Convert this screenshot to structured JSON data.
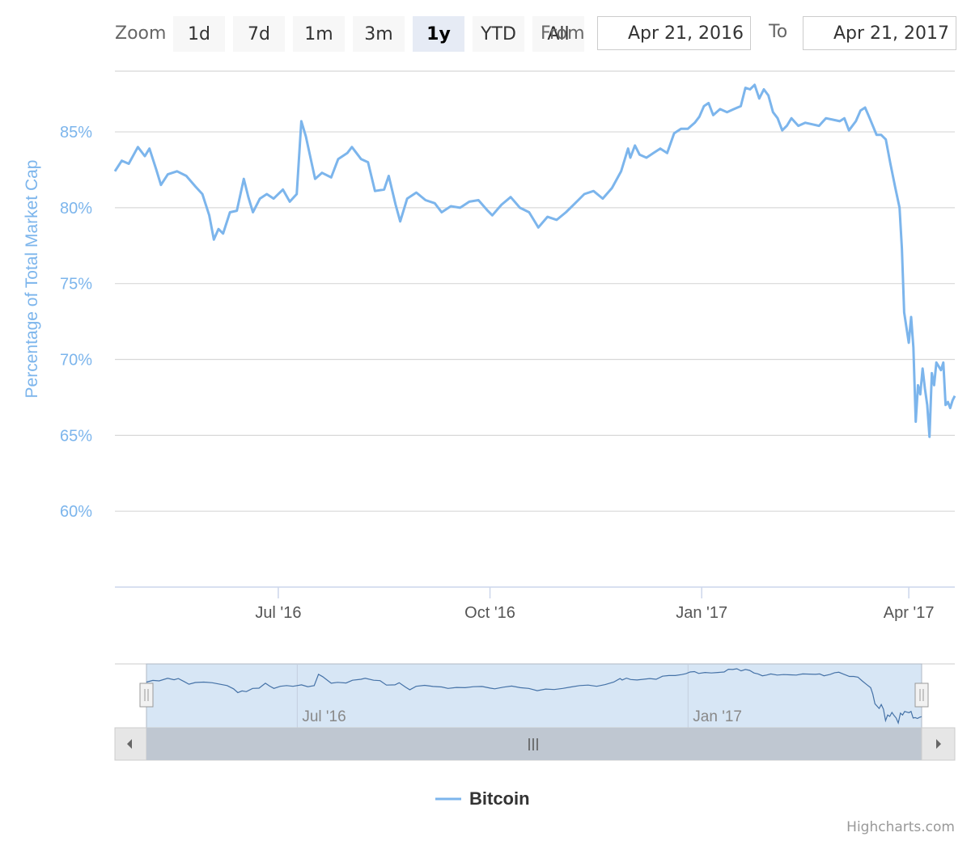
{
  "toolbar": {
    "zoom_label": "Zoom",
    "buttons": [
      {
        "label": "1d",
        "active": false
      },
      {
        "label": "7d",
        "active": false
      },
      {
        "label": "1m",
        "active": false
      },
      {
        "label": "3m",
        "active": false
      },
      {
        "label": "1y",
        "active": true
      },
      {
        "label": "YTD",
        "active": false
      },
      {
        "label": "All",
        "active": false
      }
    ],
    "from_label": "From",
    "from_value": "Apr 21, 2016",
    "to_label": "To",
    "to_value": "Apr 21, 2017"
  },
  "credits": "Highcharts.com",
  "colors": {
    "series": "#7cb5ec",
    "axis_text": "#7cb5ec",
    "navigator_mask": "#d7e6f5",
    "scrollbar": "#bfc7d1"
  },
  "chart_data": {
    "type": "line",
    "ylabel": "Percentage of Total Market Cap",
    "ylim": [
      55,
      89
    ],
    "y_ticks": [
      "60%",
      "65%",
      "70%",
      "75%",
      "80%",
      "85%"
    ],
    "x_range": [
      "2016-04-21",
      "2017-04-21"
    ],
    "x_ticks": [
      {
        "date": "2016-07-01",
        "label": "Jul '16"
      },
      {
        "date": "2016-10-01",
        "label": "Oct '16"
      },
      {
        "date": "2017-01-01",
        "label": "Jan '17"
      },
      {
        "date": "2017-04-01",
        "label": "Apr '17"
      }
    ],
    "navigator_ticks": [
      {
        "date": "2016-07-01",
        "label": "Jul '16"
      },
      {
        "date": "2017-01-01",
        "label": "Jan '17"
      }
    ],
    "legend_position": "bottom-center",
    "series": [
      {
        "name": "Bitcoin",
        "points": [
          [
            "2016-04-21",
            82.4
          ],
          [
            "2016-04-24",
            83.1
          ],
          [
            "2016-04-27",
            82.9
          ],
          [
            "2016-05-01",
            84.0
          ],
          [
            "2016-05-04",
            83.4
          ],
          [
            "2016-05-06",
            83.9
          ],
          [
            "2016-05-09",
            82.5
          ],
          [
            "2016-05-11",
            81.5
          ],
          [
            "2016-05-14",
            82.2
          ],
          [
            "2016-05-18",
            82.4
          ],
          [
            "2016-05-22",
            82.1
          ],
          [
            "2016-05-26",
            81.4
          ],
          [
            "2016-05-29",
            80.9
          ],
          [
            "2016-06-01",
            79.5
          ],
          [
            "2016-06-03",
            77.9
          ],
          [
            "2016-06-05",
            78.6
          ],
          [
            "2016-06-07",
            78.3
          ],
          [
            "2016-06-10",
            79.7
          ],
          [
            "2016-06-13",
            79.8
          ],
          [
            "2016-06-16",
            81.9
          ],
          [
            "2016-06-18",
            80.7
          ],
          [
            "2016-06-20",
            79.7
          ],
          [
            "2016-06-23",
            80.6
          ],
          [
            "2016-06-26",
            80.9
          ],
          [
            "2016-06-29",
            80.6
          ],
          [
            "2016-07-03",
            81.2
          ],
          [
            "2016-07-06",
            80.4
          ],
          [
            "2016-07-09",
            80.9
          ],
          [
            "2016-07-11",
            85.7
          ],
          [
            "2016-07-13",
            84.7
          ],
          [
            "2016-07-17",
            81.9
          ],
          [
            "2016-07-20",
            82.3
          ],
          [
            "2016-07-24",
            82.0
          ],
          [
            "2016-07-27",
            83.2
          ],
          [
            "2016-07-31",
            83.6
          ],
          [
            "2016-08-02",
            84.0
          ],
          [
            "2016-08-06",
            83.2
          ],
          [
            "2016-08-09",
            83.0
          ],
          [
            "2016-08-12",
            81.1
          ],
          [
            "2016-08-16",
            81.2
          ],
          [
            "2016-08-18",
            82.1
          ],
          [
            "2016-08-21",
            80.2
          ],
          [
            "2016-08-23",
            79.1
          ],
          [
            "2016-08-26",
            80.6
          ],
          [
            "2016-08-30",
            81.0
          ],
          [
            "2016-09-03",
            80.5
          ],
          [
            "2016-09-07",
            80.3
          ],
          [
            "2016-09-10",
            79.7
          ],
          [
            "2016-09-14",
            80.1
          ],
          [
            "2016-09-18",
            80.0
          ],
          [
            "2016-09-22",
            80.4
          ],
          [
            "2016-09-26",
            80.5
          ],
          [
            "2016-09-30",
            79.8
          ],
          [
            "2016-10-02",
            79.5
          ],
          [
            "2016-10-06",
            80.2
          ],
          [
            "2016-10-10",
            80.7
          ],
          [
            "2016-10-14",
            80.0
          ],
          [
            "2016-10-18",
            79.7
          ],
          [
            "2016-10-20",
            79.2
          ],
          [
            "2016-10-22",
            78.7
          ],
          [
            "2016-10-26",
            79.4
          ],
          [
            "2016-10-30",
            79.2
          ],
          [
            "2016-11-03",
            79.7
          ],
          [
            "2016-11-07",
            80.3
          ],
          [
            "2016-11-11",
            80.9
          ],
          [
            "2016-11-15",
            81.1
          ],
          [
            "2016-11-19",
            80.6
          ],
          [
            "2016-11-23",
            81.3
          ],
          [
            "2016-11-27",
            82.4
          ],
          [
            "2016-11-30",
            83.9
          ],
          [
            "2016-12-01",
            83.3
          ],
          [
            "2016-12-03",
            84.1
          ],
          [
            "2016-12-05",
            83.5
          ],
          [
            "2016-12-08",
            83.3
          ],
          [
            "2016-12-11",
            83.6
          ],
          [
            "2016-12-14",
            83.9
          ],
          [
            "2016-12-17",
            83.6
          ],
          [
            "2016-12-20",
            84.9
          ],
          [
            "2016-12-23",
            85.2
          ],
          [
            "2016-12-26",
            85.2
          ],
          [
            "2016-12-29",
            85.6
          ],
          [
            "2016-12-31",
            86.0
          ],
          [
            "2017-01-02",
            86.7
          ],
          [
            "2017-01-04",
            86.9
          ],
          [
            "2017-01-06",
            86.1
          ],
          [
            "2017-01-09",
            86.5
          ],
          [
            "2017-01-12",
            86.3
          ],
          [
            "2017-01-15",
            86.5
          ],
          [
            "2017-01-18",
            86.7
          ],
          [
            "2017-01-20",
            87.9
          ],
          [
            "2017-01-22",
            87.8
          ],
          [
            "2017-01-24",
            88.1
          ],
          [
            "2017-01-26",
            87.2
          ],
          [
            "2017-01-28",
            87.8
          ],
          [
            "2017-01-30",
            87.4
          ],
          [
            "2017-02-01",
            86.3
          ],
          [
            "2017-02-03",
            85.9
          ],
          [
            "2017-02-05",
            85.1
          ],
          [
            "2017-02-07",
            85.4
          ],
          [
            "2017-02-09",
            85.9
          ],
          [
            "2017-02-12",
            85.4
          ],
          [
            "2017-02-15",
            85.6
          ],
          [
            "2017-02-18",
            85.5
          ],
          [
            "2017-02-21",
            85.4
          ],
          [
            "2017-02-24",
            85.9
          ],
          [
            "2017-02-27",
            85.8
          ],
          [
            "2017-03-02",
            85.7
          ],
          [
            "2017-03-04",
            85.9
          ],
          [
            "2017-03-06",
            85.1
          ],
          [
            "2017-03-09",
            85.7
          ],
          [
            "2017-03-11",
            86.4
          ],
          [
            "2017-03-13",
            86.6
          ],
          [
            "2017-03-15",
            85.9
          ],
          [
            "2017-03-18",
            84.8
          ],
          [
            "2017-03-20",
            84.8
          ],
          [
            "2017-03-22",
            84.5
          ],
          [
            "2017-03-24",
            82.9
          ],
          [
            "2017-03-26",
            81.4
          ],
          [
            "2017-03-28",
            80.0
          ],
          [
            "2017-03-29",
            77.3
          ],
          [
            "2017-03-30",
            73.1
          ],
          [
            "2017-04-01",
            71.1
          ],
          [
            "2017-04-02",
            72.8
          ],
          [
            "2017-04-03",
            70.8
          ],
          [
            "2017-04-04",
            65.9
          ],
          [
            "2017-04-05",
            68.3
          ],
          [
            "2017-04-06",
            67.7
          ],
          [
            "2017-04-07",
            69.4
          ],
          [
            "2017-04-08",
            68.1
          ],
          [
            "2017-04-09",
            67.0
          ],
          [
            "2017-04-10",
            64.9
          ],
          [
            "2017-04-11",
            69.1
          ],
          [
            "2017-04-12",
            68.3
          ],
          [
            "2017-04-13",
            69.8
          ],
          [
            "2017-04-15",
            69.3
          ],
          [
            "2017-04-16",
            69.8
          ],
          [
            "2017-04-17",
            67.0
          ],
          [
            "2017-04-18",
            67.2
          ],
          [
            "2017-04-19",
            66.8
          ],
          [
            "2017-04-20",
            67.3
          ],
          [
            "2017-04-21",
            67.6
          ]
        ]
      }
    ]
  }
}
